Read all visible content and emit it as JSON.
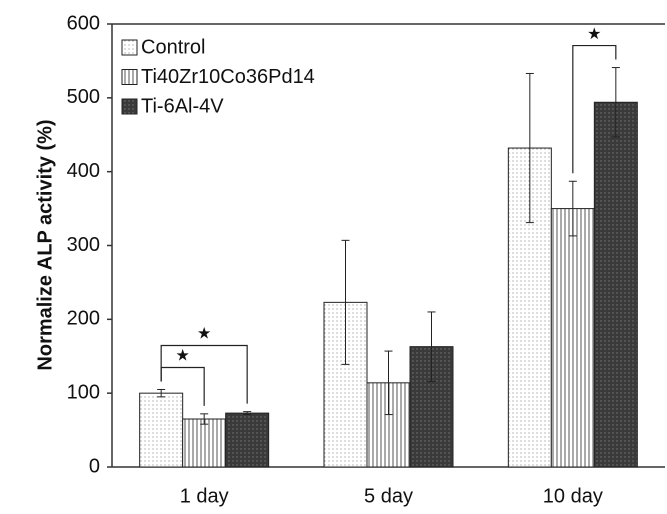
{
  "chart_data": {
    "type": "bar",
    "y_label": "Normalize ALP activity (%)",
    "categories": [
      "1 day",
      "5 day",
      "10 day"
    ],
    "series": [
      {
        "name": "Control",
        "color": "#ffffff",
        "values": [
          100,
          223,
          432
        ],
        "errors": [
          5,
          84,
          101
        ]
      },
      {
        "name": "Ti40Zr10Co36Pd14",
        "color": "#ffffff",
        "values": [
          65,
          114,
          350
        ],
        "errors": [
          7,
          43,
          37
        ]
      },
      {
        "name": "Ti-6Al-4V",
        "color": "#3a3a3a",
        "values": [
          73,
          163,
          494
        ],
        "errors": [
          2,
          47,
          47
        ]
      }
    ],
    "ylim": [
      0,
      600
    ],
    "yticks": [
      0,
      100,
      200,
      300,
      400,
      500,
      600
    ],
    "grid": false,
    "legend": "top-left",
    "significance": [
      {
        "label": "★",
        "category": 0,
        "series": [
          0,
          1
        ]
      },
      {
        "label": "★",
        "category": 0,
        "series": [
          0,
          2
        ]
      },
      {
        "label": "★",
        "category": 2,
        "series": [
          1,
          2
        ]
      }
    ]
  }
}
